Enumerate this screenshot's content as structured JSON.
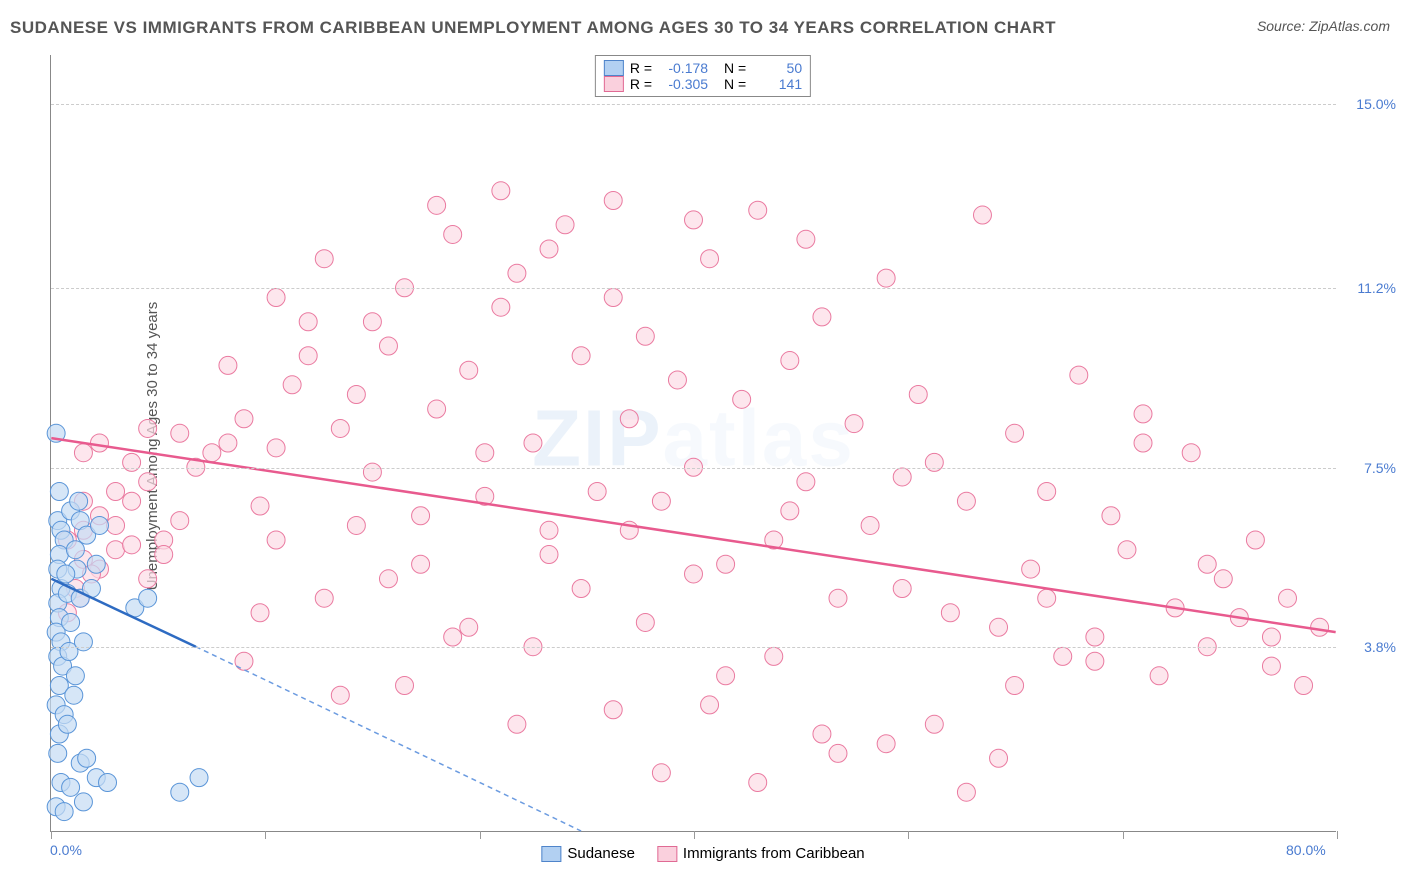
{
  "title": "SUDANESE VS IMMIGRANTS FROM CARIBBEAN UNEMPLOYMENT AMONG AGES 30 TO 34 YEARS CORRELATION CHART",
  "source": "Source: ZipAtlas.com",
  "ylabel": "Unemployment Among Ages 30 to 34 years",
  "chart": {
    "type": "scatter",
    "xlim": [
      0,
      80
    ],
    "ylim": [
      0,
      16
    ],
    "x_start_label": "0.0%",
    "x_end_label": "80.0%",
    "x_tick_positions": [
      0,
      13.33,
      26.67,
      40,
      53.33,
      66.67,
      80
    ],
    "y_ticks": [
      {
        "value": 15.0,
        "label": "15.0%"
      },
      {
        "value": 11.2,
        "label": "11.2%"
      },
      {
        "value": 7.5,
        "label": "7.5%"
      },
      {
        "value": 3.8,
        "label": "3.8%"
      }
    ],
    "grid_color": "#cccccc",
    "background_color": "#ffffff",
    "axis_label_color": "#4a7bd0",
    "title_color": "#555555",
    "watermark_text_a": "ZIP",
    "watermark_text_b": "atlas",
    "watermark_color": "#b9d3f0",
    "series": [
      {
        "name": "Sudanese",
        "marker_fill": "#c4dbf4",
        "marker_stroke": "#5a95d8",
        "swatch_fill": "#b2d0f2",
        "swatch_border": "#4f84ca",
        "line_color": "#2e6bc2",
        "line_dash_color": "#6b9be0",
        "marker_radius": 9,
        "R": "-0.178",
        "N": "50",
        "trend": {
          "x1": 0,
          "y1": 5.2,
          "x2": 9,
          "y2": 3.8
        },
        "trend_ext": {
          "x1": 9,
          "y1": 3.8,
          "x2": 33,
          "y2": 0
        },
        "points": [
          [
            0.3,
            8.2
          ],
          [
            0.5,
            7.0
          ],
          [
            0.4,
            6.4
          ],
          [
            0.6,
            6.2
          ],
          [
            0.8,
            6.0
          ],
          [
            0.5,
            5.7
          ],
          [
            0.4,
            5.4
          ],
          [
            1.2,
            6.6
          ],
          [
            1.8,
            6.4
          ],
          [
            0.6,
            5.0
          ],
          [
            0.4,
            4.7
          ],
          [
            1.0,
            4.9
          ],
          [
            1.6,
            5.4
          ],
          [
            2.2,
            6.1
          ],
          [
            0.5,
            4.4
          ],
          [
            0.3,
            4.1
          ],
          [
            0.6,
            3.9
          ],
          [
            1.2,
            4.3
          ],
          [
            1.8,
            4.8
          ],
          [
            2.5,
            5.0
          ],
          [
            0.4,
            3.6
          ],
          [
            0.7,
            3.4
          ],
          [
            1.1,
            3.7
          ],
          [
            1.5,
            3.2
          ],
          [
            0.5,
            3.0
          ],
          [
            2.0,
            3.9
          ],
          [
            0.3,
            2.6
          ],
          [
            0.8,
            2.4
          ],
          [
            1.4,
            2.8
          ],
          [
            5.2,
            4.6
          ],
          [
            6.0,
            4.8
          ],
          [
            0.5,
            2.0
          ],
          [
            1.0,
            2.2
          ],
          [
            0.4,
            1.6
          ],
          [
            1.8,
            1.4
          ],
          [
            2.2,
            1.5
          ],
          [
            0.6,
            1.0
          ],
          [
            1.2,
            0.9
          ],
          [
            2.8,
            1.1
          ],
          [
            3.5,
            1.0
          ],
          [
            8.0,
            0.8
          ],
          [
            0.3,
            0.5
          ],
          [
            0.8,
            0.4
          ],
          [
            2.0,
            0.6
          ],
          [
            9.2,
            1.1
          ],
          [
            1.5,
            5.8
          ],
          [
            2.8,
            5.5
          ],
          [
            0.9,
            5.3
          ],
          [
            3.0,
            6.3
          ],
          [
            1.7,
            6.8
          ]
        ]
      },
      {
        "name": "Immigrants from Caribbean",
        "marker_fill": "#fcdce5",
        "marker_stroke": "#ea7aa0",
        "swatch_fill": "#fad0dd",
        "swatch_border": "#e06a94",
        "line_color": "#e85a8e",
        "marker_radius": 9,
        "R": "-0.305",
        "N": "141",
        "trend": {
          "x1": 0,
          "y1": 8.1,
          "x2": 80,
          "y2": 4.1
        },
        "points": [
          [
            2,
            6.2
          ],
          [
            3,
            6.5
          ],
          [
            4,
            7.0
          ],
          [
            5,
            6.8
          ],
          [
            6,
            7.2
          ],
          [
            7,
            6.0
          ],
          [
            8,
            6.4
          ],
          [
            9,
            7.5
          ],
          [
            3,
            5.4
          ],
          [
            4,
            5.8
          ],
          [
            5,
            5.9
          ],
          [
            6,
            5.2
          ],
          [
            2,
            5.6
          ],
          [
            7,
            5.7
          ],
          [
            10,
            7.8
          ],
          [
            11,
            8.0
          ],
          [
            12,
            8.5
          ],
          [
            13,
            6.7
          ],
          [
            14,
            7.9
          ],
          [
            15,
            9.2
          ],
          [
            16,
            10.5
          ],
          [
            17,
            11.8
          ],
          [
            18,
            8.3
          ],
          [
            19,
            9.0
          ],
          [
            20,
            7.4
          ],
          [
            21,
            10.0
          ],
          [
            22,
            11.2
          ],
          [
            23,
            6.5
          ],
          [
            24,
            8.7
          ],
          [
            25,
            12.3
          ],
          [
            26,
            9.5
          ],
          [
            27,
            7.8
          ],
          [
            28,
            10.8
          ],
          [
            29,
            11.5
          ],
          [
            30,
            8.0
          ],
          [
            31,
            6.2
          ],
          [
            32,
            12.5
          ],
          [
            33,
            9.8
          ],
          [
            34,
            7.0
          ],
          [
            35,
            11.0
          ],
          [
            36,
            8.5
          ],
          [
            37,
            10.2
          ],
          [
            38,
            6.8
          ],
          [
            39,
            9.3
          ],
          [
            40,
            7.5
          ],
          [
            41,
            11.8
          ],
          [
            42,
            5.5
          ],
          [
            43,
            8.9
          ],
          [
            44,
            12.8
          ],
          [
            45,
            6.0
          ],
          [
            46,
            9.7
          ],
          [
            47,
            7.2
          ],
          [
            48,
            10.6
          ],
          [
            49,
            4.8
          ],
          [
            50,
            8.4
          ],
          [
            51,
            6.3
          ],
          [
            52,
            11.4
          ],
          [
            53,
            5.0
          ],
          [
            54,
            9.0
          ],
          [
            55,
            7.6
          ],
          [
            56,
            4.5
          ],
          [
            57,
            6.8
          ],
          [
            58,
            12.7
          ],
          [
            59,
            4.2
          ],
          [
            60,
            8.2
          ],
          [
            61,
            5.4
          ],
          [
            62,
            7.0
          ],
          [
            63,
            3.6
          ],
          [
            64,
            9.4
          ],
          [
            65,
            4.0
          ],
          [
            66,
            6.5
          ],
          [
            67,
            5.8
          ],
          [
            68,
            8.6
          ],
          [
            69,
            3.2
          ],
          [
            70,
            4.6
          ],
          [
            71,
            7.8
          ],
          [
            72,
            3.8
          ],
          [
            73,
            5.2
          ],
          [
            74,
            4.4
          ],
          [
            75,
            6.0
          ],
          [
            76,
            3.4
          ],
          [
            77,
            4.8
          ],
          [
            78,
            3.0
          ],
          [
            79,
            4.2
          ],
          [
            12,
            3.5
          ],
          [
            18,
            2.8
          ],
          [
            22,
            3.0
          ],
          [
            26,
            4.2
          ],
          [
            30,
            3.8
          ],
          [
            35,
            2.5
          ],
          [
            38,
            1.2
          ],
          [
            42,
            3.2
          ],
          [
            44,
            1.0
          ],
          [
            48,
            2.0
          ],
          [
            52,
            1.8
          ],
          [
            55,
            2.2
          ],
          [
            57,
            0.8
          ],
          [
            59,
            1.5
          ],
          [
            13,
            4.5
          ],
          [
            17,
            4.8
          ],
          [
            21,
            5.2
          ],
          [
            25,
            4.0
          ],
          [
            29,
            2.2
          ],
          [
            33,
            5.0
          ],
          [
            37,
            4.3
          ],
          [
            41,
            2.6
          ],
          [
            45,
            3.6
          ],
          [
            49,
            1.6
          ],
          [
            8,
            8.2
          ],
          [
            11,
            9.6
          ],
          [
            14,
            6.0
          ],
          [
            19,
            6.3
          ],
          [
            23,
            5.5
          ],
          [
            27,
            6.9
          ],
          [
            31,
            5.7
          ],
          [
            36,
            6.2
          ],
          [
            40,
            5.3
          ],
          [
            46,
            6.6
          ],
          [
            53,
            7.3
          ],
          [
            62,
            4.8
          ],
          [
            31,
            12.0
          ],
          [
            35,
            13.0
          ],
          [
            40,
            12.6
          ],
          [
            47,
            12.2
          ],
          [
            28,
            13.2
          ],
          [
            24,
            12.9
          ],
          [
            2,
            7.8
          ],
          [
            3,
            8.0
          ],
          [
            4,
            6.3
          ],
          [
            5,
            7.6
          ],
          [
            6,
            8.3
          ],
          [
            1,
            6.0
          ],
          [
            2,
            6.8
          ],
          [
            1.5,
            5.0
          ],
          [
            2.5,
            5.3
          ],
          [
            1,
            4.5
          ],
          [
            1.8,
            4.8
          ],
          [
            68,
            8.0
          ],
          [
            72,
            5.5
          ],
          [
            76,
            4.0
          ],
          [
            65,
            3.5
          ],
          [
            60,
            3.0
          ],
          [
            14,
            11.0
          ],
          [
            16,
            9.8
          ],
          [
            20,
            10.5
          ]
        ]
      }
    ]
  },
  "legend_top_label_R": "R =",
  "legend_top_label_N": "N =",
  "stat_value_color": "#4a7bd0"
}
